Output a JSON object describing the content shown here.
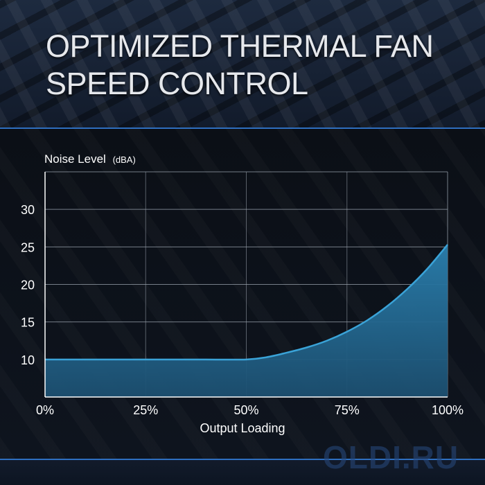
{
  "header": {
    "title": "OPTIMIZED THERMAL FAN SPEED CONTROL"
  },
  "watermark": "OLDI.RU",
  "chart_data": {
    "type": "area",
    "title": "OPTIMIZED THERMAL FAN SPEED CONTROL",
    "ylabel": "Noise Level",
    "ylabel_unit": "(dBA)",
    "xlabel": "Output Loading",
    "xlim": [
      0,
      100
    ],
    "ylim": [
      5,
      35
    ],
    "x_ticks": [
      "0%",
      "25%",
      "50%",
      "75%",
      "100%"
    ],
    "y_ticks": [
      "10",
      "15",
      "20",
      "25",
      "30"
    ],
    "grid": true,
    "series": [
      {
        "x": [
          0,
          10,
          20,
          30,
          40,
          50,
          55,
          60,
          65,
          70,
          75,
          80,
          85,
          90,
          95,
          100
        ],
        "y": [
          10,
          10,
          10,
          10,
          10,
          10,
          10.3,
          10.9,
          11.6,
          12.5,
          13.7,
          15.2,
          17.1,
          19.4,
          22.1,
          25.3
        ]
      }
    ],
    "colors": {
      "line": "#3aa3d8",
      "fill": "#1c4f70",
      "grid": "#9aa3ad",
      "axis": "#ffffff"
    }
  }
}
